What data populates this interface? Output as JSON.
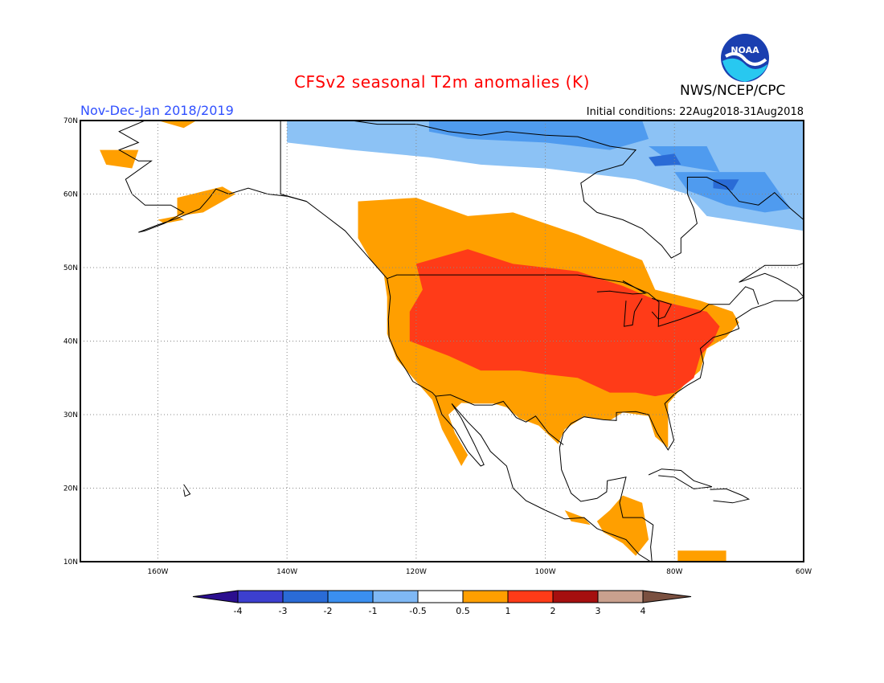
{
  "header": {
    "title": "CFSv2 seasonal T2m anomalies (K)",
    "period": "Nov-Dec-Jan 2018/2019",
    "initial_conditions": "Initial conditions: 22Aug2018-31Aug2018",
    "agency": "NWS/NCEP/CPC",
    "logo_text": "NOAA"
  },
  "map": {
    "projection": "equirectangular",
    "lon_range": [
      -172,
      -60
    ],
    "lat_range": [
      10,
      70
    ],
    "lat_labels": [
      "70N",
      "60N",
      "50N",
      "40N",
      "30N",
      "20N",
      "10N"
    ],
    "lon_labels": [
      "160W",
      "140W",
      "120W",
      "100W",
      "80W",
      "60W"
    ],
    "grid": "dotted"
  },
  "legend": {
    "tick_labels": [
      "-4",
      "-3",
      "-2",
      "-1",
      "-0.5",
      "0.5",
      "1",
      "2",
      "3",
      "4"
    ],
    "colors": [
      "#2b0f8f",
      "#3c3fcf",
      "#2a6bd6",
      "#3a8ff0",
      "#7fb8f5",
      "#ffffff",
      "#ff9f00",
      "#ff3b18",
      "#a50f0f",
      "#c9a08e",
      "#7a5040"
    ]
  },
  "anomaly_colors": {
    "cool_weak": "#8cc2f5",
    "cool_mod": "#4f9bef",
    "cool_strong": "#2a6bd6",
    "warm_weak": "#ff9f00",
    "warm_mod": "#ff3b18"
  }
}
